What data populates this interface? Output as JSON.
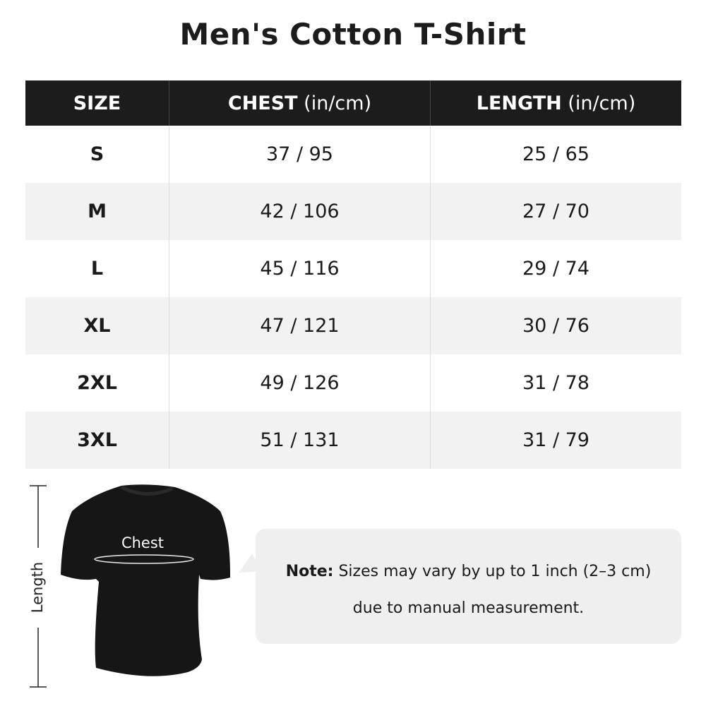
{
  "title": "Men's Cotton T-Shirt",
  "table": {
    "headers": [
      {
        "bold": "SIZE",
        "unit": ""
      },
      {
        "bold": "CHEST",
        "unit": " (in/cm)"
      },
      {
        "bold": "LENGTH",
        "unit": " (in/cm)"
      }
    ],
    "rows": [
      {
        "size": "S",
        "chest": "37 / 95",
        "length": "25 / 65"
      },
      {
        "size": "M",
        "chest": "42 / 106",
        "length": "27 / 70"
      },
      {
        "size": "L",
        "chest": "45 / 116",
        "length": "29 / 74"
      },
      {
        "size": "XL",
        "chest": "47 / 121",
        "length": "30 / 76"
      },
      {
        "size": "2XL",
        "chest": "49 / 126",
        "length": "31 / 78"
      },
      {
        "size": "3XL",
        "chest": "51 / 131",
        "length": "31 / 79"
      }
    ]
  },
  "diagram": {
    "chest_label": "Chest",
    "length_label": "Length"
  },
  "note": {
    "label": "Note:",
    "line1": " Sizes may vary by up to 1 inch (2–3 cm)",
    "line2": "due to manual measurement."
  },
  "colors": {
    "header_bg": "#1c1c1c",
    "row_alt": "#f2f2f2",
    "note_bg": "#efefef"
  }
}
